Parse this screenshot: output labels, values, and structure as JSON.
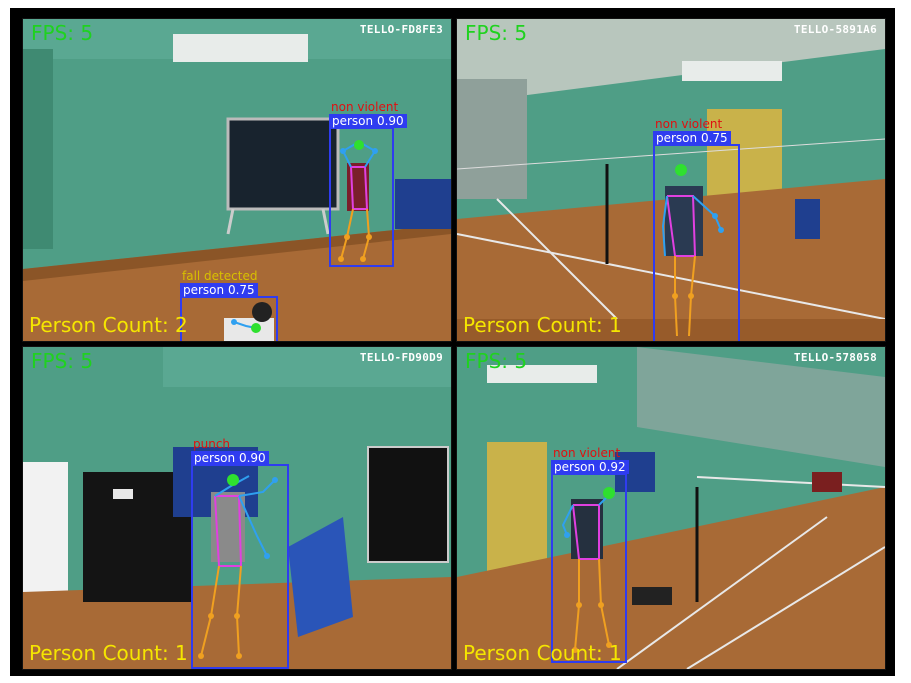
{
  "feeds": [
    {
      "fps_label": "FPS: 5",
      "drone_id": "TELLO-FD8FE3",
      "person_count_label": "Person Count: 2",
      "detections": [
        {
          "label": "person 0.90",
          "action": "non violent",
          "action_color": "#e01010"
        },
        {
          "label": "person 0.75",
          "action": "fall detected",
          "action_color": "#d8c000"
        }
      ]
    },
    {
      "fps_label": "FPS: 5",
      "drone_id": "TELLO-5891A6",
      "person_count_label": "Person Count: 1",
      "detections": [
        {
          "label": "person 0.75",
          "action": "non violent",
          "action_color": "#e01010"
        }
      ]
    },
    {
      "fps_label": "FPS: 5",
      "drone_id": "TELLO-FD90D9",
      "person_count_label": "Person Count: 1",
      "detections": [
        {
          "label": "person 0.90",
          "action": "punch",
          "action_color": "#e01010"
        }
      ]
    },
    {
      "fps_label": "FPS: 5",
      "drone_id": "TELLO-578058",
      "person_count_label": "Person Count: 1",
      "detections": [
        {
          "label": "person 0.92",
          "action": "non violent",
          "action_color": "#e01010"
        }
      ]
    }
  ]
}
